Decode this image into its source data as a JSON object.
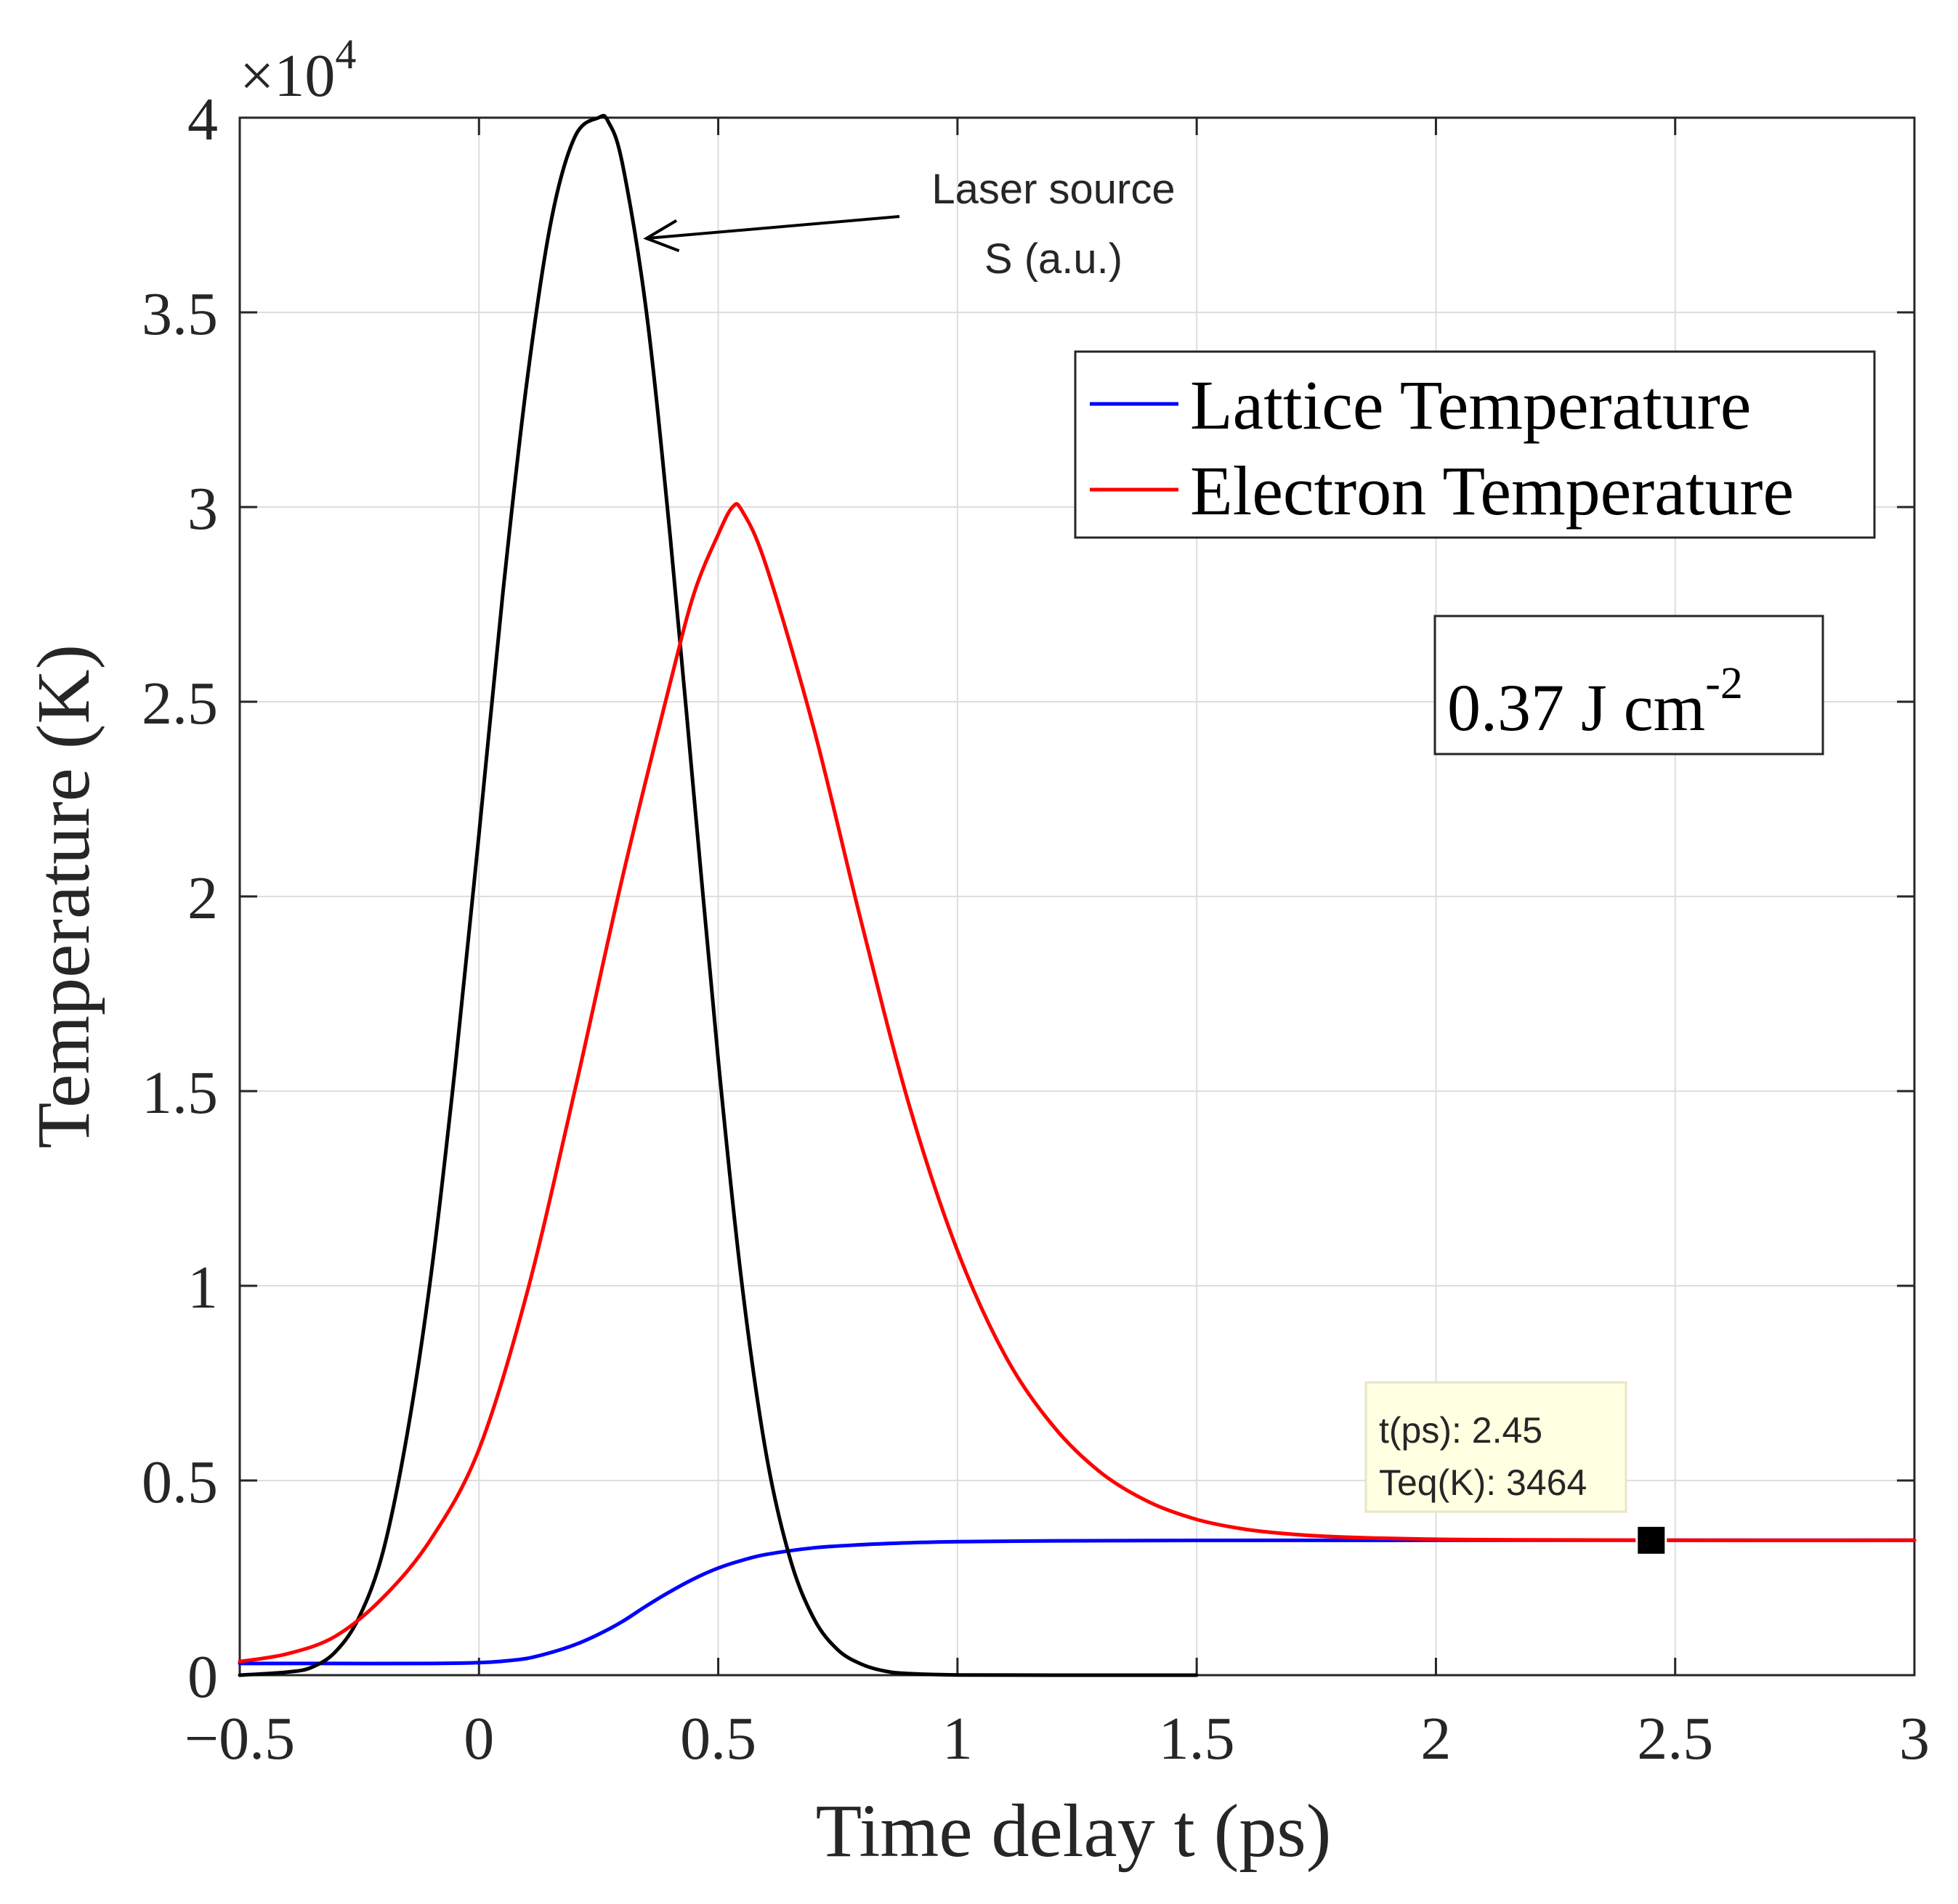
{
  "chart_data": {
    "type": "line",
    "xlabel": "Time delay t (ps)",
    "ylabel": "Temperature (K)",
    "xlim": [
      -0.5,
      3
    ],
    "ylim": [
      0,
      40000
    ],
    "y_exponent_label": "×10",
    "y_exponent_power": "4",
    "grid": true,
    "xticks": [
      -0.5,
      0,
      0.5,
      1,
      1.5,
      2,
      2.5,
      3
    ],
    "xtick_labels": [
      "−0.5",
      "0",
      "0.5",
      "1",
      "1.5",
      "2",
      "2.5",
      "3"
    ],
    "yticks": [
      0,
      5000,
      10000,
      15000,
      20000,
      25000,
      30000,
      35000,
      40000
    ],
    "ytick_labels": [
      "0",
      "0.5",
      "1",
      "1.5",
      "2",
      "2.5",
      "3",
      "3.5",
      "4"
    ],
    "legend_position": "top-right",
    "series": [
      {
        "name": "Lattice Temperature",
        "color": "#0000ff",
        "in_legend": true,
        "x": [
          -0.5,
          -0.3,
          -0.1,
          0.0,
          0.05,
          0.1,
          0.15,
          0.2,
          0.25,
          0.3,
          0.35,
          0.4,
          0.45,
          0.5,
          0.55,
          0.6,
          0.7,
          0.8,
          0.9,
          1.0,
          1.2,
          1.5,
          2.0,
          2.5,
          3.0
        ],
        "values": [
          300,
          300,
          300,
          320,
          360,
          430,
          580,
          780,
          1050,
          1380,
          1780,
          2150,
          2480,
          2750,
          2950,
          3100,
          3270,
          3350,
          3400,
          3430,
          3450,
          3460,
          3464,
          3464,
          3464
        ]
      },
      {
        "name": "Electron Temperature",
        "color": "#ff0000",
        "in_legend": true,
        "x": [
          -0.5,
          -0.4,
          -0.3,
          -0.2,
          -0.1,
          0.0,
          0.1,
          0.2,
          0.3,
          0.4,
          0.45,
          0.5,
          0.53,
          0.55,
          0.6,
          0.7,
          0.8,
          0.9,
          1.0,
          1.1,
          1.2,
          1.3,
          1.4,
          1.5,
          1.6,
          1.7,
          1.8,
          2.0,
          2.2,
          2.5,
          3.0
        ],
        "values": [
          350,
          550,
          1000,
          2000,
          3500,
          5800,
          9800,
          15000,
          20500,
          25500,
          27800,
          29300,
          30000,
          29900,
          28500,
          24300,
          19300,
          14600,
          10900,
          8200,
          6400,
          5200,
          4450,
          4000,
          3750,
          3620,
          3550,
          3490,
          3475,
          3464,
          3464
        ]
      },
      {
        "name": "Laser source S (a.u.)",
        "color": "#000000",
        "in_legend": false,
        "x": [
          -0.5,
          -0.4,
          -0.35,
          -0.3,
          -0.25,
          -0.2,
          -0.15,
          -0.1,
          -0.05,
          0.0,
          0.05,
          0.1,
          0.15,
          0.2,
          0.25,
          0.27,
          0.3,
          0.35,
          0.4,
          0.45,
          0.5,
          0.55,
          0.6,
          0.65,
          0.7,
          0.75,
          0.8,
          0.85,
          0.9,
          1.0,
          1.2,
          1.5
        ],
        "values": [
          0,
          80,
          200,
          600,
          1500,
          3200,
          6200,
          10300,
          15600,
          21600,
          27800,
          33200,
          37300,
          39500,
          40000,
          39900,
          38800,
          35000,
          29200,
          22500,
          15800,
          10000,
          5700,
          3000,
          1450,
          650,
          280,
          100,
          40,
          5,
          0,
          0
        ]
      }
    ],
    "annotations": [
      {
        "name": "laser-source-label",
        "lines": [
          "Laser source",
          "S (a.u.)"
        ],
        "arrow_to": {
          "x": 0.35,
          "y": 36900
        }
      },
      {
        "name": "fluence-box",
        "text": "0.37 J cm",
        "superscript": "-2"
      },
      {
        "name": "data-tip",
        "marker": {
          "x": 2.45,
          "y": 3464
        },
        "lines": [
          "t(ps): 2.45",
          "Teq(K): 3464"
        ]
      }
    ]
  }
}
